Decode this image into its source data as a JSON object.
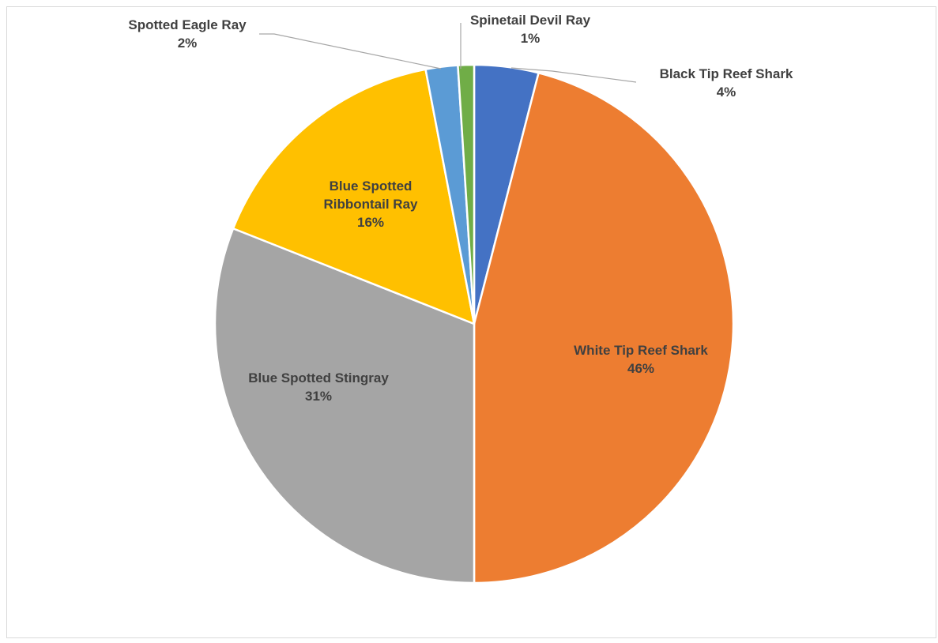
{
  "chart_data": {
    "type": "pie",
    "title": "",
    "legend": "none",
    "slices": [
      {
        "label": "Black Tip Reef Shark",
        "value": 4,
        "value_label": "4%",
        "color": "#4472C4",
        "label_lines": [
          "Black Tip Reef Shark"
        ],
        "label_placement": "outside"
      },
      {
        "label": "White Tip Reef Shark",
        "value": 46,
        "value_label": "46%",
        "color": "#ED7D31",
        "label_lines": [
          "White Tip Reef Shark"
        ],
        "label_placement": "inside"
      },
      {
        "label": "Blue Spotted Stingray",
        "value": 31,
        "value_label": "31%",
        "color": "#A5A5A5",
        "label_lines": [
          "Blue Spotted Stingray"
        ],
        "label_placement": "inside"
      },
      {
        "label": "Blue Spotted Ribbontail Ray",
        "value": 16,
        "value_label": "16%",
        "color": "#FFC000",
        "label_lines": [
          "Blue Spotted",
          "Ribbontail Ray"
        ],
        "label_placement": "inside"
      },
      {
        "label": "Spotted Eagle Ray",
        "value": 2,
        "value_label": "2%",
        "color": "#5B9BD5",
        "label_lines": [
          "Spotted Eagle Ray"
        ],
        "label_placement": "outside"
      },
      {
        "label": "Spinetail Devil Ray",
        "value": 1,
        "value_label": "1%",
        "color": "#70AD47",
        "label_lines": [
          "Spinetail Devil Ray"
        ],
        "label_placement": "outside"
      }
    ]
  }
}
